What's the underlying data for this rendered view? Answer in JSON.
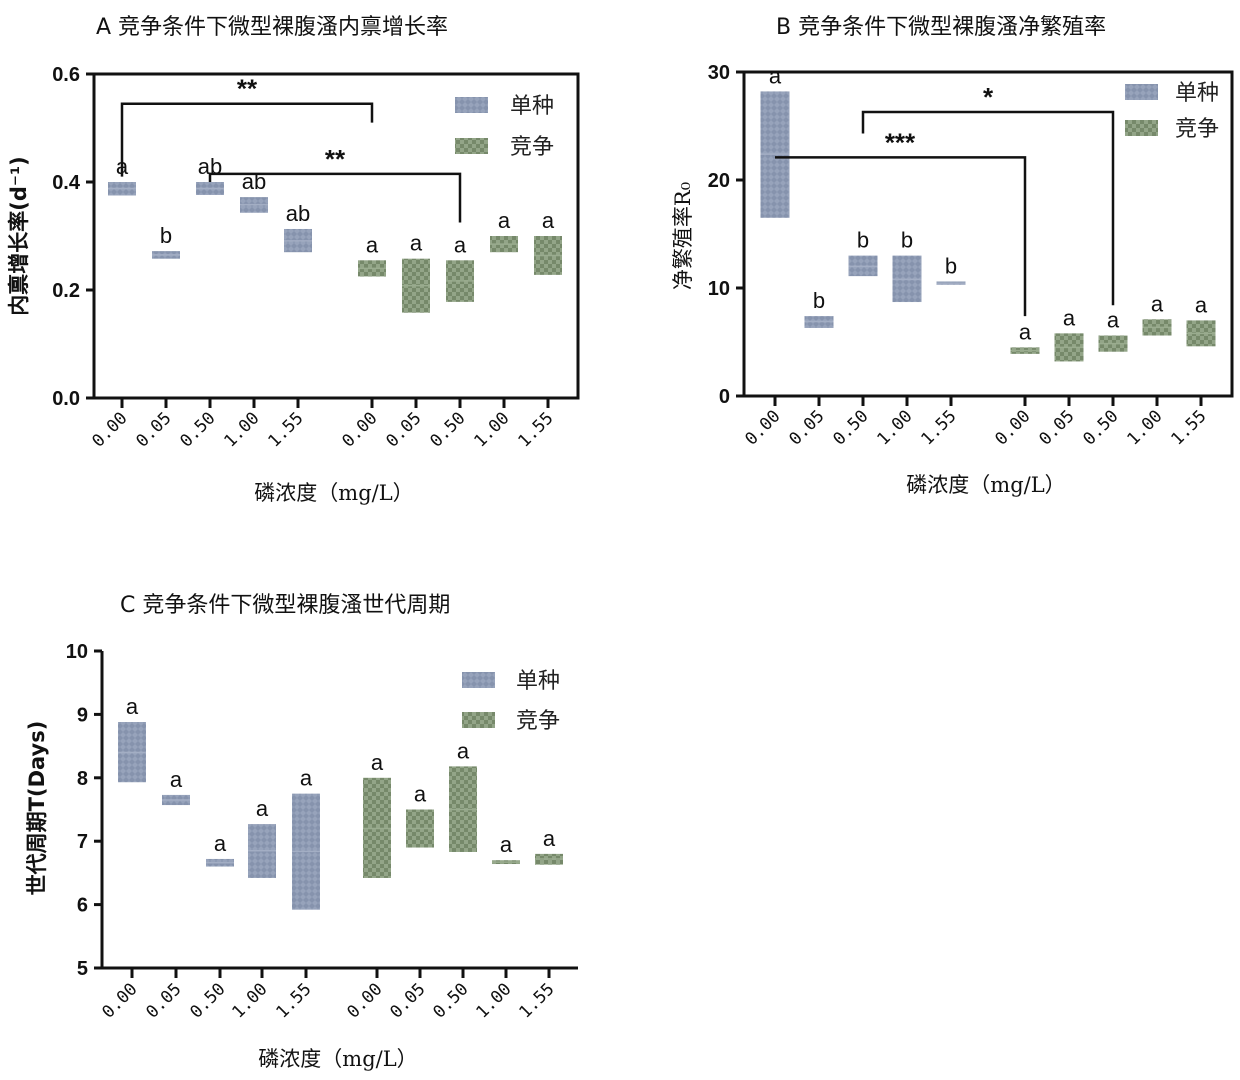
{
  "colors": {
    "single": "#8693ad",
    "compete": "#7c8f6f",
    "axis": "#111111"
  },
  "chart_data": [
    {
      "type": "floating-bar",
      "title": "A  竞争条件下微型裸腹溞内禀增长率",
      "ylabel": "内禀增长率(d⁻¹)",
      "xlabel": "磷浓度（mg/L）",
      "ylim": [
        0,
        0.6
      ],
      "yticks": [
        "0.0",
        "0.2",
        "0.4",
        "0.6"
      ],
      "categories": [
        "0.00",
        "0.05",
        "0.50",
        "1.00",
        "1.55",
        "0.00",
        "0.05",
        "0.50",
        "1.00",
        "1.55"
      ],
      "legend": [
        "单种",
        "竞争"
      ],
      "bars": [
        {
          "group": 0,
          "min": 0.375,
          "max": 0.4,
          "mean": 0.388,
          "label": "a"
        },
        {
          "group": 0,
          "min": 0.258,
          "max": 0.272,
          "mean": 0.265,
          "label": "b"
        },
        {
          "group": 0,
          "min": 0.376,
          "max": 0.4,
          "mean": 0.388,
          "label": "ab"
        },
        {
          "group": 0,
          "min": 0.343,
          "max": 0.372,
          "mean": 0.358,
          "label": "ab"
        },
        {
          "group": 0,
          "min": 0.27,
          "max": 0.313,
          "mean": 0.291,
          "label": "ab"
        },
        {
          "group": 1,
          "min": 0.225,
          "max": 0.255,
          "mean": 0.24,
          "label": "a"
        },
        {
          "group": 1,
          "min": 0.158,
          "max": 0.258,
          "mean": 0.208,
          "label": "a"
        },
        {
          "group": 1,
          "min": 0.178,
          "max": 0.255,
          "mean": 0.217,
          "label": "a"
        },
        {
          "group": 1,
          "min": 0.27,
          "max": 0.3,
          "mean": 0.285,
          "label": "a"
        },
        {
          "group": 1,
          "min": 0.228,
          "max": 0.3,
          "mean": 0.264,
          "label": "a"
        }
      ],
      "brackets": [
        {
          "from": 0,
          "to": 5,
          "level": 0.545,
          "fromY": 0.41,
          "toY": 0.51,
          "label": "**"
        },
        {
          "from": 2,
          "to": 7,
          "level": 0.415,
          "fromY": 0.4,
          "toY": 0.325,
          "label": "**"
        }
      ]
    },
    {
      "type": "floating-bar",
      "title": "B   竞争条件下微型裸腹溞净繁殖率",
      "ylabel": "净繁殖率R₀",
      "xlabel": "磷浓度（mg/L）",
      "ylim": [
        0,
        30
      ],
      "yticks": [
        "0",
        "10",
        "20",
        "30"
      ],
      "categories": [
        "0.00",
        "0.05",
        "0.50",
        "1.00",
        "1.55",
        "0.00",
        "0.05",
        "0.50",
        "1.00",
        "1.55"
      ],
      "legend": [
        "单种",
        "竞争"
      ],
      "bars": [
        {
          "group": 0,
          "min": 16.5,
          "max": 28.2,
          "mean": 22.4,
          "label": "a"
        },
        {
          "group": 0,
          "min": 6.3,
          "max": 7.4,
          "mean": 6.9,
          "label": "b"
        },
        {
          "group": 0,
          "min": 11.1,
          "max": 13.0,
          "mean": 12.0,
          "label": "b"
        },
        {
          "group": 0,
          "min": 8.7,
          "max": 13.0,
          "mean": 10.8,
          "label": "b"
        },
        {
          "group": 0,
          "min": 10.3,
          "max": 10.6,
          "mean": 10.45,
          "label": "b"
        },
        {
          "group": 1,
          "min": 3.9,
          "max": 4.5,
          "mean": 4.2,
          "label": "a"
        },
        {
          "group": 1,
          "min": 3.2,
          "max": 5.8,
          "mean": 4.5,
          "label": "a"
        },
        {
          "group": 1,
          "min": 4.1,
          "max": 5.6,
          "mean": 4.85,
          "label": "a"
        },
        {
          "group": 1,
          "min": 5.6,
          "max": 7.1,
          "mean": 6.35,
          "label": "a"
        },
        {
          "group": 1,
          "min": 4.6,
          "max": 7.0,
          "mean": 5.8,
          "label": "a"
        }
      ],
      "brackets": [
        {
          "from": 0,
          "to": 5,
          "level": 22.1,
          "fromY": 22.1,
          "toY": 7.4,
          "label": "***"
        },
        {
          "from": 2,
          "to": 7,
          "level": 26.3,
          "fromY": 24.3,
          "toY": 8.4,
          "label": "*"
        }
      ]
    },
    {
      "type": "floating-bar",
      "title": "C  竞争条件下微型裸腹溞世代周期",
      "ylabel": "世代周期T(Days)",
      "xlabel": "磷浓度（mg/L）",
      "ylim": [
        5,
        10
      ],
      "yticks": [
        "5",
        "6",
        "7",
        "8",
        "9",
        "10"
      ],
      "categories": [
        "0.00",
        "0.05",
        "0.50",
        "1.00",
        "1.55",
        "0.00",
        "0.05",
        "0.50",
        "1.00",
        "1.55"
      ],
      "legend": [
        "单种",
        "竞争"
      ],
      "bars": [
        {
          "group": 0,
          "min": 7.93,
          "max": 8.88,
          "mean": 8.4,
          "label": "a"
        },
        {
          "group": 0,
          "min": 7.57,
          "max": 7.73,
          "mean": 7.65,
          "label": "a"
        },
        {
          "group": 0,
          "min": 6.6,
          "max": 6.72,
          "mean": 6.66,
          "label": "a"
        },
        {
          "group": 0,
          "min": 6.42,
          "max": 7.27,
          "mean": 6.85,
          "label": "a"
        },
        {
          "group": 0,
          "min": 5.92,
          "max": 7.75,
          "mean": 6.84,
          "label": "a"
        },
        {
          "group": 1,
          "min": 6.42,
          "max": 8.0,
          "mean": 7.2,
          "label": "a"
        },
        {
          "group": 1,
          "min": 6.9,
          "max": 7.5,
          "mean": 7.2,
          "label": "a"
        },
        {
          "group": 1,
          "min": 6.83,
          "max": 8.18,
          "mean": 7.5,
          "label": "a"
        },
        {
          "group": 1,
          "min": 6.64,
          "max": 6.7,
          "mean": 6.67,
          "label": "a"
        },
        {
          "group": 1,
          "min": 6.63,
          "max": 6.8,
          "mean": 6.72,
          "label": "a"
        }
      ],
      "brackets": []
    }
  ]
}
